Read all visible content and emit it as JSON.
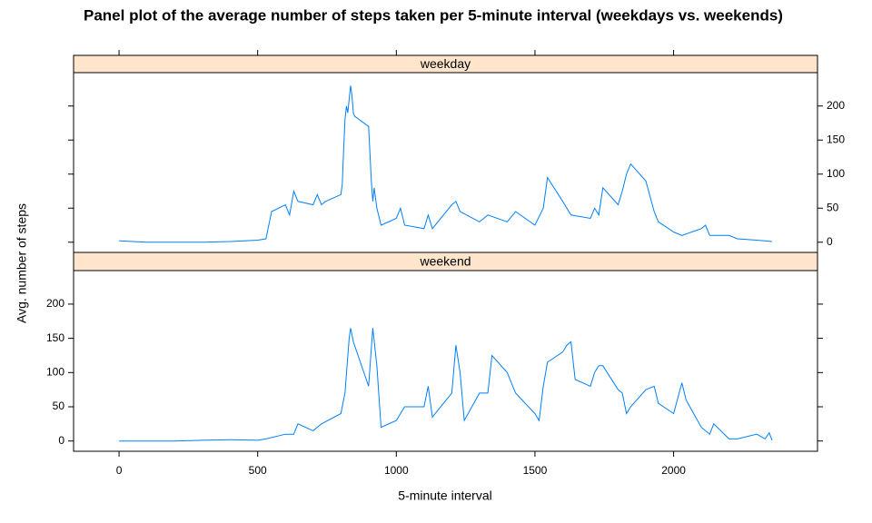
{
  "chart_data": {
    "type": "line",
    "title": "Panel plot of the average number of steps taken per 5-minute interval (weekdays vs. weekends)",
    "xlabel": "5-minute interval",
    "ylabel": "Avg. number of steps",
    "xlim": [
      -164,
      2519
    ],
    "ylim": [
      -15,
      249
    ],
    "xticks": [
      0,
      500,
      1000,
      1500,
      2000
    ],
    "yticks": [
      0,
      50,
      100,
      150,
      200
    ],
    "series": [
      {
        "name": "weekday",
        "color": "#0080ff",
        "x": [
          0,
          100,
          200,
          300,
          400,
          500,
          530,
          550,
          600,
          615,
          630,
          645,
          700,
          715,
          730,
          745,
          800,
          805,
          810,
          815,
          820,
          825,
          830,
          835,
          840,
          845,
          850,
          900,
          905,
          910,
          915,
          920,
          930,
          945,
          1000,
          1015,
          1030,
          1100,
          1115,
          1130,
          1200,
          1215,
          1230,
          1300,
          1330,
          1400,
          1430,
          1500,
          1530,
          1545,
          1600,
          1630,
          1700,
          1715,
          1730,
          1745,
          1800,
          1815,
          1830,
          1845,
          1900,
          1930,
          1945,
          2000,
          2030,
          2100,
          2115,
          2130,
          2200,
          2230,
          2300,
          2330,
          2355
        ],
        "values": [
          2,
          0,
          0,
          0,
          1,
          3,
          5,
          45,
          55,
          40,
          75,
          60,
          55,
          70,
          55,
          60,
          70,
          85,
          135,
          180,
          200,
          190,
          210,
          230,
          215,
          190,
          185,
          170,
          130,
          90,
          60,
          80,
          50,
          25,
          35,
          50,
          25,
          20,
          40,
          20,
          55,
          60,
          45,
          30,
          40,
          30,
          45,
          25,
          50,
          95,
          60,
          40,
          35,
          50,
          40,
          80,
          55,
          75,
          100,
          115,
          90,
          45,
          30,
          15,
          10,
          20,
          25,
          10,
          10,
          5,
          3,
          2,
          1
        ]
      },
      {
        "name": "weekend",
        "color": "#0080ff",
        "x": [
          0,
          100,
          200,
          300,
          400,
          500,
          530,
          600,
          630,
          645,
          700,
          730,
          800,
          815,
          830,
          835,
          845,
          900,
          915,
          930,
          945,
          1000,
          1030,
          1100,
          1115,
          1130,
          1200,
          1215,
          1230,
          1245,
          1300,
          1330,
          1345,
          1400,
          1430,
          1500,
          1515,
          1530,
          1545,
          1600,
          1615,
          1630,
          1645,
          1700,
          1715,
          1730,
          1745,
          1800,
          1815,
          1830,
          1845,
          1900,
          1930,
          1945,
          2000,
          2030,
          2045,
          2100,
          2130,
          2145,
          2200,
          2230,
          2300,
          2330,
          2345,
          2355
        ],
        "values": [
          0,
          0,
          0,
          1,
          2,
          1,
          3,
          10,
          10,
          25,
          15,
          25,
          40,
          70,
          150,
          165,
          145,
          80,
          165,
          110,
          20,
          30,
          50,
          50,
          80,
          35,
          70,
          140,
          100,
          30,
          70,
          70,
          125,
          100,
          70,
          40,
          30,
          80,
          115,
          130,
          140,
          145,
          90,
          80,
          100,
          110,
          110,
          75,
          70,
          40,
          50,
          75,
          80,
          55,
          40,
          85,
          60,
          20,
          10,
          25,
          3,
          3,
          10,
          3,
          12,
          1
        ]
      }
    ]
  }
}
